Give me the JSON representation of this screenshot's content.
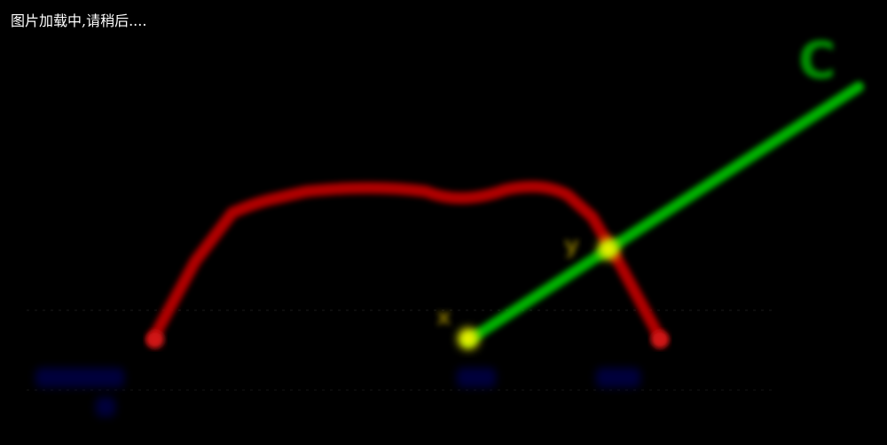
{
  "loading_text": "图片加载中,请稍后....",
  "labels": {
    "line_label": "C",
    "point_left": "x",
    "point_right": "y",
    "axis_left": "",
    "axis_left_sub": "",
    "axis_mid": "",
    "axis_right": ""
  },
  "colors": {
    "background": "#000000",
    "baseline": "#bdbdbd",
    "curve": "#b00000",
    "line": "#00b300",
    "line_label": "#008f00",
    "point": "#e8f000",
    "axis_labels": "#00006e",
    "loading_text": "#ffffff"
  }
}
